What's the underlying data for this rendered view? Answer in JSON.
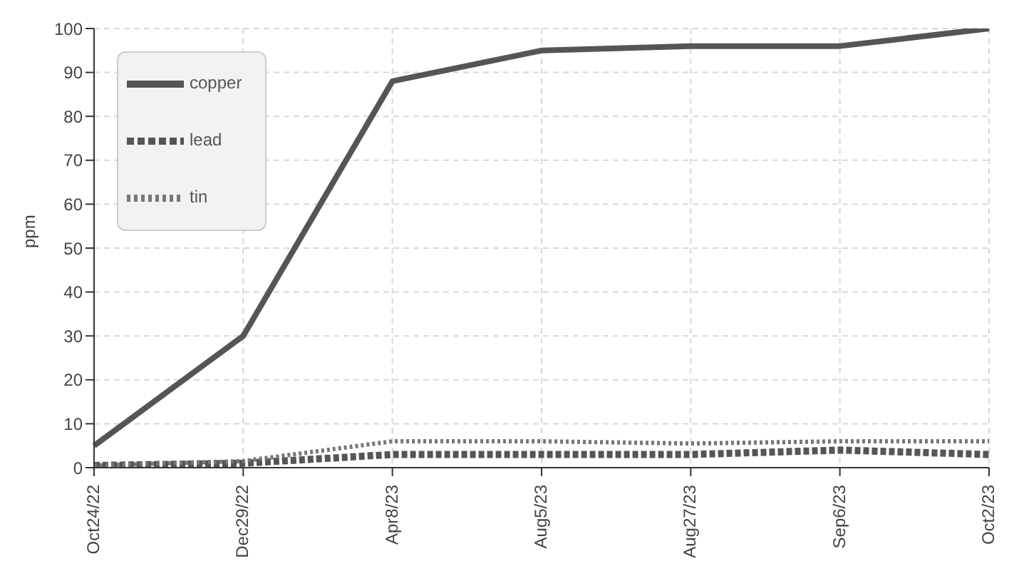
{
  "chart_data": {
    "type": "line",
    "ylabel": "ppm",
    "categories": [
      "Oct24/22",
      "Dec29/22",
      "Apr8/23",
      "Aug5/23",
      "Aug27/23",
      "Sep6/23",
      "Oct2/23"
    ],
    "series": [
      {
        "name": "copper",
        "color": "#555555",
        "line_style": "solid",
        "values": [
          5,
          30,
          88,
          95,
          96,
          96,
          100
        ]
      },
      {
        "name": "lead",
        "color": "#555555",
        "line_style": "dashed",
        "values": [
          0.5,
          1,
          3,
          3,
          3,
          4,
          3
        ]
      },
      {
        "name": "tin",
        "color": "#777777",
        "line_style": "dotted",
        "values": [
          0.5,
          1.5,
          6,
          6,
          5.5,
          6,
          6
        ]
      }
    ],
    "ylim": [
      0,
      100
    ],
    "yticks": [
      0,
      10,
      20,
      30,
      40,
      50,
      60,
      70,
      80,
      90,
      100
    ],
    "grid": true,
    "legend": "top left",
    "marker": "none"
  }
}
